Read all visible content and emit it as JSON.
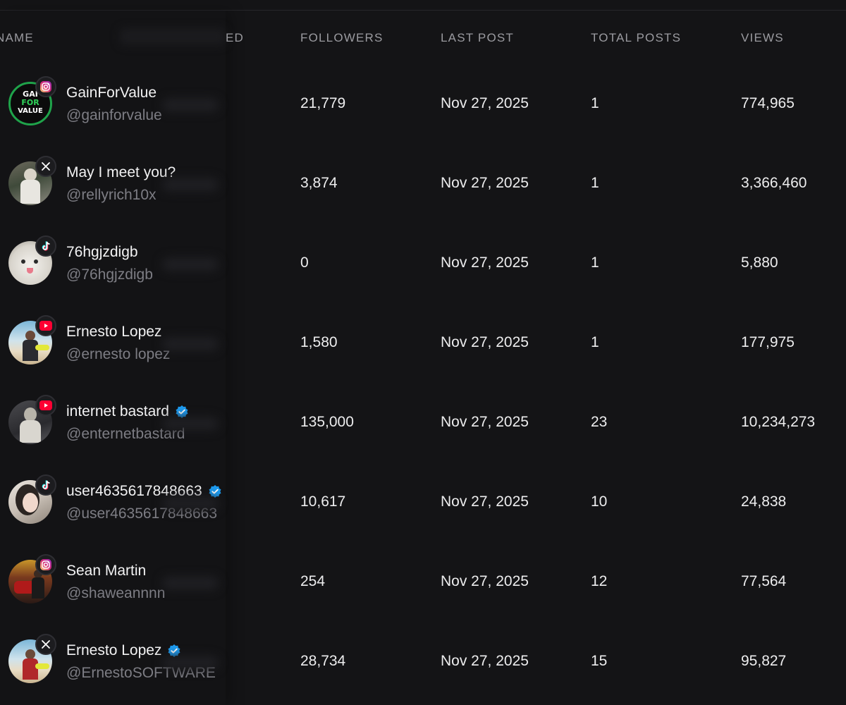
{
  "columns": {
    "name": "NAME",
    "hidden": "ED",
    "followers": "FOLLOWERS",
    "last_post": "LAST POST",
    "total_posts": "TOTAL POSTS",
    "views": "VIEWS"
  },
  "colors": {
    "background": "#141416",
    "verified": "#1d9bf0",
    "youtube": "#ff0033",
    "instagram_gradient": [
      "#feda75",
      "#d62976",
      "#962fbf"
    ],
    "tiktok_cyan": "#25f4ee",
    "tiktok_red": "#fe2c55"
  },
  "rows": [
    {
      "name": "GainForValue",
      "handle": "@gainforvalue",
      "platform": "instagram-icon",
      "verified": false,
      "followers": "21,779",
      "last_post": "Nov 27, 2025",
      "total_posts": "1",
      "views": "774,965",
      "avatar_text": [
        "GAI",
        "FOR",
        "VALUE"
      ]
    },
    {
      "name": "May I meet you?",
      "handle": "@rellyrich10x",
      "platform": "x-icon",
      "verified": false,
      "followers": "3,874",
      "last_post": "Nov 27, 2025",
      "total_posts": "1",
      "views": "3,366,460"
    },
    {
      "name": "76hgjzdigb",
      "handle": "@76hgjzdigb",
      "platform": "tiktok-icon",
      "verified": false,
      "followers": "0",
      "last_post": "Nov 27, 2025",
      "total_posts": "1",
      "views": "5,880"
    },
    {
      "name": "Ernesto Lopez",
      "handle": "@ernesto lopez",
      "platform": "youtube-icon",
      "verified": false,
      "followers": "1,580",
      "last_post": "Nov 27, 2025",
      "total_posts": "1",
      "views": "177,975"
    },
    {
      "name": "internet bastard",
      "handle": "@enternetbastard",
      "platform": "youtube-icon",
      "verified": true,
      "followers": "135,000",
      "last_post": "Nov 27, 2025",
      "total_posts": "23",
      "views": "10,234,273"
    },
    {
      "name": "user4635617848663",
      "handle": "@user4635617848663",
      "platform": "tiktok-icon",
      "verified": true,
      "followers": "10,617",
      "last_post": "Nov 27, 2025",
      "total_posts": "10",
      "views": "24,838"
    },
    {
      "name": "Sean Martin",
      "handle": "@shaweannnn",
      "platform": "instagram-icon",
      "verified": false,
      "followers": "254",
      "last_post": "Nov 27, 2025",
      "total_posts": "12",
      "views": "77,564"
    },
    {
      "name": "Ernesto Lopez",
      "handle": "@ErnestoSOFTWARE",
      "platform": "x-icon",
      "verified": true,
      "followers": "28,734",
      "last_post": "Nov 27, 2025",
      "total_posts": "15",
      "views": "95,827"
    }
  ]
}
